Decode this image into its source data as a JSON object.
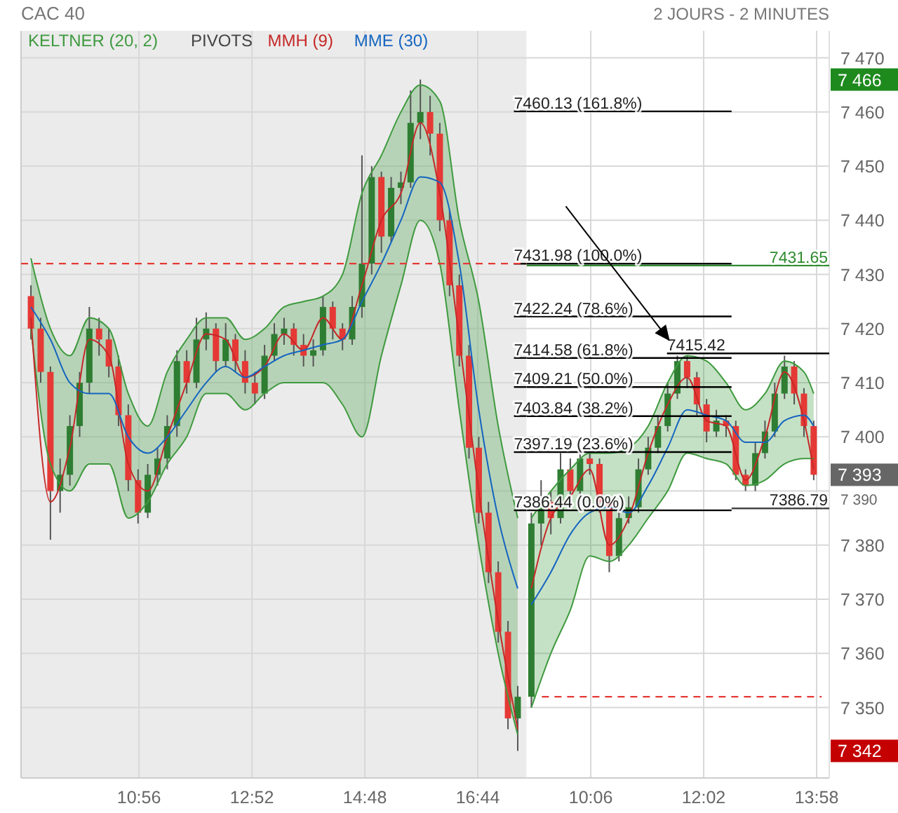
{
  "chart_data": [
    {
      "type": "candlestick",
      "title": "CAC 40",
      "x": [
        9.083,
        9.25,
        9.417,
        9.583,
        9.75,
        9.917,
        10.083,
        10.25,
        10.417,
        10.583,
        10.75,
        10.917,
        11.083,
        11.25,
        11.417,
        11.583,
        11.75,
        11.917,
        12.083,
        12.25,
        12.417,
        12.583,
        12.75,
        12.917,
        13.083,
        13.25,
        13.417,
        13.583,
        13.75,
        13.917,
        14.083,
        14.25,
        14.417,
        14.583,
        14.75,
        14.917,
        15.083,
        15.25,
        15.417,
        15.583,
        15.75,
        15.917,
        16.083,
        16.25,
        16.417,
        16.583,
        16.75,
        16.917,
        17.083,
        17.25,
        17.417
      ],
      "ohlc": [
        [
          7426,
          7428,
          7418,
          7420
        ],
        [
          7420,
          7422,
          7410,
          7412
        ],
        [
          7412,
          7413,
          7381,
          7390
        ],
        [
          7390,
          7396,
          7386,
          7393
        ],
        [
          7393,
          7404,
          7391,
          7402
        ],
        [
          7402,
          7412,
          7400,
          7410
        ],
        [
          7410,
          7424,
          7408,
          7420
        ],
        [
          7420,
          7422,
          7415,
          7418
        ],
        [
          7418,
          7420,
          7411,
          7413
        ],
        [
          7413,
          7415,
          7402,
          7404
        ],
        [
          7404,
          7406,
          7390,
          7392
        ],
        [
          7392,
          7394,
          7384,
          7386
        ],
        [
          7386,
          7395,
          7385,
          7393
        ],
        [
          7393,
          7398,
          7391,
          7396
        ],
        [
          7396,
          7404,
          7394,
          7402
        ],
        [
          7402,
          7416,
          7400,
          7414
        ],
        [
          7414,
          7416,
          7408,
          7410
        ],
        [
          7410,
          7422,
          7409,
          7418
        ],
        [
          7418,
          7423,
          7416,
          7420
        ],
        [
          7420,
          7421,
          7412,
          7414
        ],
        [
          7414,
          7421,
          7413,
          7418
        ],
        [
          7418,
          7419,
          7412,
          7414
        ],
        [
          7414,
          7416,
          7408,
          7410
        ],
        [
          7410,
          7412,
          7406,
          7408
        ],
        [
          7408,
          7417,
          7407,
          7415
        ],
        [
          7415,
          7421,
          7414,
          7419
        ],
        [
          7419,
          7422,
          7417,
          7420
        ],
        [
          7420,
          7421,
          7415,
          7417
        ],
        [
          7417,
          7419,
          7413,
          7415
        ],
        [
          7415,
          7418,
          7413,
          7416
        ],
        [
          7416,
          7426,
          7415,
          7424
        ],
        [
          7424,
          7425,
          7418,
          7420
        ],
        [
          7420,
          7421,
          7416,
          7418
        ],
        [
          7418,
          7426,
          7417,
          7424
        ],
        [
          7424,
          7452,
          7422,
          7432
        ],
        [
          7432,
          7450,
          7430,
          7448
        ],
        [
          7448,
          7449,
          7434,
          7437
        ],
        [
          7437,
          7448,
          7436,
          7446
        ],
        [
          7446,
          7449,
          7443,
          7447
        ],
        [
          7447,
          7464,
          7446,
          7458
        ],
        [
          7458,
          7466,
          7455,
          7460
        ],
        [
          7460,
          7463,
          7452,
          7456
        ],
        [
          7456,
          7458,
          7438,
          7440
        ],
        [
          7440,
          7442,
          7426,
          7428
        ],
        [
          7428,
          7430,
          7413,
          7415
        ],
        [
          7415,
          7417,
          7396,
          7398
        ],
        [
          7398,
          7400,
          7384,
          7386
        ],
        [
          7386,
          7388,
          7373,
          7375
        ],
        [
          7375,
          7377,
          7362,
          7364
        ],
        [
          7364,
          7366,
          7346,
          7348
        ],
        [
          7348,
          7354,
          7342,
          7352
        ]
      ],
      "series": [
        {
          "name": "KELTNER (20, 2)",
          "type": "line",
          "color": "#3f9a3f",
          "x": [
            9.083,
            9.417,
            9.75,
            10.083,
            10.417,
            10.75,
            11.083,
            11.417,
            11.75,
            12.083,
            12.417,
            12.75,
            13.083,
            13.417,
            13.75,
            14.083,
            14.417,
            14.75,
            15.083,
            15.417,
            15.75,
            16.083,
            16.417,
            16.75,
            17.083,
            17.417
          ],
          "values": [
            7433,
            7420,
            7415,
            7422,
            7420,
            7408,
            7402,
            7412,
            7418,
            7422,
            7422,
            7418,
            7420,
            7424,
            7425,
            7426,
            7430,
            7445,
            7452,
            7460,
            7465,
            7462,
            7440,
            7425,
            7402,
            7385
          ],
          "lower": [
            7420,
            7395,
            7390,
            7395,
            7395,
            7385,
            7388,
            7395,
            7400,
            7408,
            7408,
            7405,
            7408,
            7410,
            7410,
            7410,
            7406,
            7400,
            7415,
            7428,
            7440,
            7432,
            7405,
            7380,
            7360,
            7345
          ],
          "upper": [
            7433,
            7420,
            7415,
            7422,
            7420,
            7408,
            7402,
            7412,
            7418,
            7422,
            7422,
            7418,
            7420,
            7424,
            7425,
            7426,
            7430,
            7445,
            7452,
            7460,
            7465,
            7462,
            7440,
            7425,
            7402,
            7385
          ]
        },
        {
          "type": "line",
          "color": "#3f9a3f",
          "x": [
            9.083,
            9.417,
            9.75,
            10.083,
            10.417,
            10.75,
            11.083,
            11.417,
            11.75,
            12.083,
            12.417,
            12.75,
            13.083,
            13.417,
            13.75,
            14.083,
            14.417,
            14.75,
            15.083,
            15.417,
            15.75,
            16.083,
            16.417,
            16.75,
            17.083,
            17.417
          ],
          "values": [
            7420,
            7395,
            7390,
            7395,
            7395,
            7385,
            7388,
            7395,
            7400,
            7408,
            7408,
            7405,
            7408,
            7410,
            7410,
            7410,
            7406,
            7400,
            7415,
            7428,
            7440,
            7432,
            7405,
            7380,
            7360,
            7345
          ]
        },
        {
          "name": "MMH (9)",
          "type": "line",
          "color": "#c62828",
          "x": [
            9.083,
            9.417,
            9.75,
            10.083,
            10.417,
            10.75,
            11.083,
            11.417,
            11.75,
            12.083,
            12.417,
            12.75,
            13.083,
            13.417,
            13.75,
            14.083,
            14.417,
            14.75,
            15.083,
            15.417,
            15.75,
            16.083,
            16.417,
            16.75,
            17.083,
            17.417
          ],
          "values": [
            7422,
            7388,
            7398,
            7418,
            7415,
            7395,
            7390,
            7400,
            7410,
            7419,
            7418,
            7411,
            7413,
            7419,
            7416,
            7422,
            7418,
            7428,
            7440,
            7445,
            7458,
            7445,
            7418,
            7390,
            7366,
            7346
          ]
        },
        {
          "name": "MME (30)",
          "type": "line",
          "color": "#1565c0",
          "x": [
            9.083,
            9.417,
            9.75,
            10.083,
            10.417,
            10.75,
            11.083,
            11.417,
            11.75,
            12.083,
            12.417,
            12.75,
            13.083,
            13.417,
            13.75,
            14.083,
            14.417,
            14.75,
            15.083,
            15.417,
            15.75,
            16.083,
            16.417,
            16.75,
            17.083,
            17.417
          ],
          "values": [
            7424,
            7418,
            7410,
            7408,
            7408,
            7400,
            7397,
            7400,
            7405,
            7410,
            7413,
            7411,
            7413,
            7415,
            7416,
            7417,
            7418,
            7425,
            7432,
            7440,
            7448,
            7447,
            7432,
            7405,
            7385,
            7372
          ]
        },
        {
          "type": "line",
          "color": "#000000",
          "x": [
            17.352,
            17.567
          ],
          "values": [
            7460.13,
            7460.13
          ]
        },
        {
          "type": "line",
          "color": "#000000",
          "x": [
            17.352,
            17.567
          ],
          "values": [
            7431.98,
            7431.98
          ]
        },
        {
          "type": "line",
          "color": "#000000",
          "x": [
            17.352,
            17.567
          ],
          "values": [
            7422.24,
            7422.24
          ]
        },
        {
          "type": "line",
          "color": "#000000",
          "x": [
            17.352,
            17.567
          ],
          "values": [
            7414.58,
            7414.58
          ]
        },
        {
          "type": "line",
          "color": "#000000",
          "x": [
            17.352,
            17.567
          ],
          "values": [
            7409.21,
            7409.21
          ]
        },
        {
          "type": "line",
          "color": "#000000",
          "x": [
            17.352,
            17.567
          ],
          "values": [
            7403.84,
            7403.84
          ]
        },
        {
          "type": "line",
          "color": "#000000",
          "x": [
            17.352,
            17.567
          ],
          "values": [
            7397.19,
            7397.19
          ]
        },
        {
          "type": "line",
          "color": "#000000",
          "x": [
            17.352,
            17.567
          ],
          "values": [
            7386.44,
            7386.44
          ]
        },
        {
          "type": "line",
          "color": "#e53935",
          "line_style": "dashed",
          "x": [
            8.914,
            17.567
          ],
          "values": [
            7432,
            7432
          ]
        }
      ],
      "annotations": [
        "PIVOTS",
        {
          "text": "7460.13 (161.8%)",
          "x": 17.352,
          "y": 7460.13
        },
        {
          "text": "7431.98 (100.0%)",
          "x": 17.352,
          "y": 7431.98
        },
        {
          "text": "7422.24 (78.6%)",
          "x": 17.352,
          "y": 7422.24
        },
        {
          "text": "7414.58 (61.8%)",
          "x": 17.352,
          "y": 7414.58
        },
        {
          "text": "7409.21 (50.0%)",
          "x": 17.352,
          "y": 7409.21
        },
        {
          "text": "7403.84 (38.2%)",
          "x": 17.352,
          "y": 7403.84
        },
        {
          "text": "7397.19 (23.6%)",
          "x": 17.352,
          "y": 7397.19
        },
        {
          "text": "7386.44 (0.0%)",
          "x": 17.352,
          "y": 7386.44
        }
      ],
      "bands": [
        {
          "axis": "x",
          "from": 8.914,
          "to": 17.567,
          "color": "#ebebeb"
        }
      ],
      "xlim": [
        8.914,
        17.567
      ],
      "xticks": [
        {
          "value": 10.933,
          "label": "10:56"
        },
        {
          "value": 12.867,
          "label": "12:52"
        },
        {
          "value": 14.8,
          "label": "14:48"
        },
        {
          "value": 16.733,
          "label": "16:44"
        }
      ],
      "ylim": [
        7337,
        7475
      ],
      "yticks": [
        7350,
        7360,
        7370,
        7380,
        7390,
        7400,
        7410,
        7420,
        7430,
        7440,
        7450,
        7460,
        7470
      ],
      "tick_labels": "x",
      "grid": true,
      "legend": "top left",
      "marker": "none",
      "line_style": "solid"
    },
    {
      "type": "candlestick",
      "subtitle": "2 JOURS - 2 MINUTES",
      "x": [
        9.083,
        9.25,
        9.417,
        9.583,
        9.75,
        9.917,
        10.083,
        10.25,
        10.417,
        10.583,
        10.75,
        10.917,
        11.083,
        11.25,
        11.417,
        11.583,
        11.75,
        11.917,
        12.083,
        12.25,
        12.417,
        12.583,
        12.75,
        12.917,
        13.083,
        13.25,
        13.417,
        13.583,
        13.75,
        13.917
      ],
      "ohlc": [
        [
          7352,
          7386,
          7350,
          7384
        ],
        [
          7384,
          7392,
          7380,
          7388
        ],
        [
          7388,
          7390,
          7382,
          7385
        ],
        [
          7385,
          7397,
          7384,
          7394
        ],
        [
          7394,
          7396,
          7388,
          7390
        ],
        [
          7390,
          7398,
          7389,
          7396
        ],
        [
          7396,
          7398,
          7393,
          7395
        ],
        [
          7395,
          7396,
          7386,
          7388
        ],
        [
          7388,
          7389,
          7375,
          7378
        ],
        [
          7378,
          7387,
          7377,
          7385
        ],
        [
          7385,
          7389,
          7384,
          7387
        ],
        [
          7387,
          7396,
          7386,
          7394
        ],
        [
          7394,
          7400,
          7393,
          7398
        ],
        [
          7398,
          7404,
          7397,
          7402
        ],
        [
          7402,
          7410,
          7401,
          7408
        ],
        [
          7408,
          7415,
          7407,
          7414
        ],
        [
          7414,
          7415,
          7409,
          7411
        ],
        [
          7411,
          7412,
          7404,
          7406
        ],
        [
          7406,
          7407,
          7399,
          7401
        ],
        [
          7401,
          7405,
          7400,
          7403
        ],
        [
          7403,
          7404,
          7400,
          7402
        ],
        [
          7402,
          7403,
          7392,
          7393
        ],
        [
          7393,
          7394,
          7390,
          7391
        ],
        [
          7391,
          7399,
          7390,
          7397
        ],
        [
          7397,
          7403,
          7396,
          7401
        ],
        [
          7401,
          7410,
          7400,
          7408
        ],
        [
          7408,
          7415,
          7407,
          7413
        ],
        [
          7413,
          7414,
          7406,
          7408
        ],
        [
          7408,
          7409,
          7400,
          7402
        ],
        [
          7402,
          7403,
          7392,
          7393
        ]
      ],
      "series": [
        {
          "type": "line",
          "color": "#3f9a3f",
          "x": [
            9.083,
            9.417,
            9.75,
            10.083,
            10.417,
            10.75,
            11.083,
            11.417,
            11.75,
            12.083,
            12.417,
            12.75,
            13.083,
            13.417,
            13.75,
            13.917
          ],
          "values": [
            7385,
            7390,
            7394,
            7397,
            7397,
            7398,
            7402,
            7410,
            7415,
            7414,
            7410,
            7405,
            7408,
            7414,
            7412,
            7408
          ],
          "lower": [
            7350,
            7360,
            7368,
            7378,
            7377,
            7380,
            7385,
            7390,
            7397,
            7396,
            7395,
            7391,
            7392,
            7395,
            7396,
            7396
          ],
          "upper": [
            7385,
            7390,
            7394,
            7397,
            7397,
            7398,
            7402,
            7410,
            7415,
            7414,
            7410,
            7405,
            7408,
            7414,
            7412,
            7408
          ]
        },
        {
          "type": "line",
          "color": "#3f9a3f",
          "x": [
            9.083,
            9.417,
            9.75,
            10.083,
            10.417,
            10.75,
            11.083,
            11.417,
            11.75,
            12.083,
            12.417,
            12.75,
            13.083,
            13.417,
            13.75,
            13.917
          ],
          "values": [
            7350,
            7360,
            7368,
            7378,
            7377,
            7380,
            7385,
            7390,
            7397,
            7396,
            7395,
            7391,
            7392,
            7395,
            7396,
            7396
          ]
        },
        {
          "type": "line",
          "color": "#c62828",
          "x": [
            9.083,
            9.417,
            9.75,
            10.083,
            10.417,
            10.75,
            11.083,
            11.417,
            11.75,
            12.083,
            12.417,
            12.75,
            13.083,
            13.417,
            13.75,
            13.917
          ],
          "values": [
            7372,
            7385,
            7389,
            7394,
            7380,
            7385,
            7397,
            7406,
            7411,
            7403,
            7402,
            7392,
            7400,
            7412,
            7403,
            7394
          ]
        },
        {
          "type": "line",
          "color": "#1565c0",
          "x": [
            9.083,
            9.417,
            9.75,
            10.083,
            10.417,
            10.75,
            11.083,
            11.417,
            11.75,
            12.083,
            12.417,
            12.75,
            13.083,
            13.417,
            13.75,
            13.917
          ],
          "values": [
            7369,
            7375,
            7382,
            7386,
            7387,
            7386,
            7391,
            7398,
            7405,
            7404,
            7403,
            7399,
            7399,
            7403,
            7404,
            7402
          ]
        },
        {
          "type": "line",
          "color": "#000000",
          "x": [
            9.0,
            12.511
          ],
          "values": [
            7460.13,
            7460.13
          ]
        },
        {
          "type": "line",
          "color": "#000000",
          "x": [
            9.0,
            12.511
          ],
          "values": [
            7431.98,
            7431.98
          ]
        },
        {
          "type": "line",
          "color": "#000000",
          "x": [
            9.0,
            12.511
          ],
          "values": [
            7422.24,
            7422.24
          ]
        },
        {
          "type": "line",
          "color": "#000000",
          "x": [
            9.0,
            12.511
          ],
          "values": [
            7414.58,
            7414.58
          ]
        },
        {
          "type": "line",
          "color": "#000000",
          "x": [
            9.0,
            12.511
          ],
          "values": [
            7409.21,
            7409.21
          ]
        },
        {
          "type": "line",
          "color": "#000000",
          "x": [
            9.0,
            12.511
          ],
          "values": [
            7403.84,
            7403.84
          ]
        },
        {
          "type": "line",
          "color": "#000000",
          "x": [
            9.0,
            12.511
          ],
          "values": [
            7397.19,
            7397.19
          ]
        },
        {
          "type": "line",
          "color": "#000000",
          "x": [
            9.0,
            12.511
          ],
          "values": [
            7386.44,
            7386.44
          ]
        },
        {
          "type": "line",
          "color": "#000000",
          "x": [
            11.405,
            14.183
          ],
          "values": [
            7415.42,
            7415.42
          ]
        },
        {
          "type": "line",
          "color": "#333333",
          "x": [
            12.511,
            14.183
          ],
          "values": [
            7386.79,
            7386.79
          ]
        },
        {
          "type": "line",
          "color": "#2e8b2e",
          "x": [
            9.0,
            14.183
          ],
          "values": [
            7431.65,
            7431.65
          ]
        },
        {
          "type": "line",
          "color": "#e53935",
          "line_style": "dashed",
          "x": [
            9.263,
            14.053
          ],
          "values": [
            7352,
            7352
          ]
        }
      ],
      "annotations": [
        {
          "text": "7415.42",
          "x": 11.405,
          "y": 7415.42
        },
        {
          "text": "7386.79",
          "x": 14.183,
          "y": 7386.79
        },
        {
          "text": "7431.65",
          "x": 14.183,
          "y": 7431.65
        }
      ],
      "xlim": [
        9.0,
        14.183
      ],
      "xticks": [
        {
          "value": 10.1,
          "label": "10:06"
        },
        {
          "value": 12.033,
          "label": "12:02"
        },
        {
          "value": 13.967,
          "label": "13:58"
        }
      ],
      "ylim": [
        7337,
        7475
      ],
      "yticks": [
        {
          "value": 7342,
          "label": "7 342"
        },
        {
          "value": 7350,
          "label": "7 350"
        },
        {
          "value": 7360,
          "label": "7 360"
        },
        {
          "value": 7370,
          "label": "7 370"
        },
        {
          "value": 7380,
          "label": "7 380"
        },
        {
          "value": 7390,
          "label": "7 390"
        },
        {
          "value": 7393,
          "label": "7 393"
        },
        {
          "value": 7400,
          "label": "7 400"
        },
        {
          "value": 7410,
          "label": "7 410"
        },
        {
          "value": 7420,
          "label": "7 420"
        },
        {
          "value": 7430,
          "label": "7 430"
        },
        {
          "value": 7440,
          "label": "7 440"
        },
        {
          "value": 7450,
          "label": "7 450"
        },
        {
          "value": 7460,
          "label": "7 460"
        },
        {
          "value": 7466,
          "label": "7 466"
        },
        {
          "value": 7470,
          "label": "7 470"
        }
      ],
      "grid": true,
      "marker": "none",
      "line_style": "solid"
    }
  ]
}
